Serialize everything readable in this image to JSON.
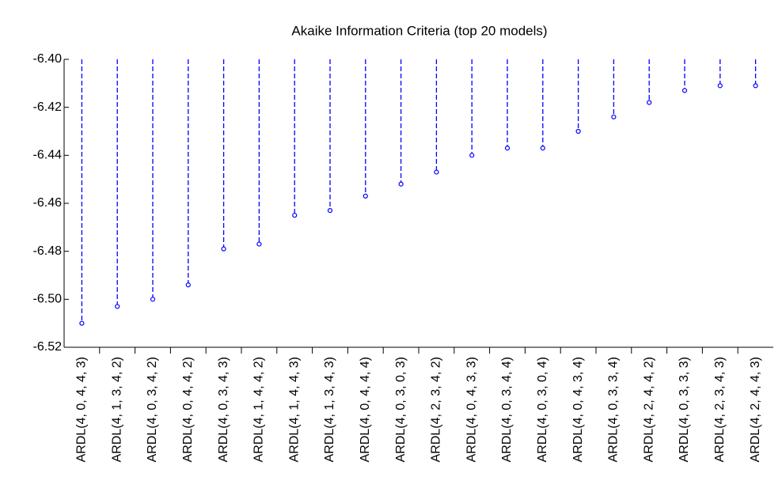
{
  "chart_data": {
    "type": "dropline",
    "title": "Akaike Information Criteria (top 20 models)",
    "categories": [
      "ARDL(4, 0, 4, 4, 3)",
      "ARDL(4, 1, 3, 4, 2)",
      "ARDL(4, 0, 3, 4, 2)",
      "ARDL(4, 0, 4, 4, 2)",
      "ARDL(4, 0, 3, 4, 3)",
      "ARDL(4, 1, 4, 4, 2)",
      "ARDL(4, 1, 4, 4, 3)",
      "ARDL(4, 1, 3, 4, 3)",
      "ARDL(4, 0, 4, 4, 4)",
      "ARDL(4, 0, 3, 0, 3)",
      "ARDL(4, 2, 3, 4, 2)",
      "ARDL(4, 0, 4, 3, 3)",
      "ARDL(4, 0, 3, 4, 4)",
      "ARDL(4, 0, 3, 0, 4)",
      "ARDL(4, 0, 4, 3, 4)",
      "ARDL(4, 0, 3, 3, 4)",
      "ARDL(4, 2, 4, 4, 2)",
      "ARDL(4, 0, 3, 3, 3)",
      "ARDL(4, 2, 3, 4, 3)",
      "ARDL(4, 2, 4, 4, 3)"
    ],
    "values": [
      -6.51,
      -6.503,
      -6.5,
      -6.494,
      -6.479,
      -6.477,
      -6.465,
      -6.463,
      -6.457,
      -6.452,
      -6.447,
      -6.44,
      -6.437,
      -6.437,
      -6.43,
      -6.424,
      -6.418,
      -6.413,
      -6.411,
      -6.411
    ],
    "color": "#0000ff",
    "ylim": [
      -6.52,
      -6.4
    ],
    "yticks": [
      {
        "value": -6.52,
        "label": "-6.52"
      },
      {
        "value": -6.5,
        "label": "-6.50"
      },
      {
        "value": -6.48,
        "label": "-6.48"
      },
      {
        "value": -6.46,
        "label": "-6.46"
      },
      {
        "value": -6.44,
        "label": "-6.44"
      },
      {
        "value": -6.42,
        "label": "-6.42"
      },
      {
        "value": -6.4,
        "label": "-6.40"
      }
    ],
    "grid": false
  }
}
